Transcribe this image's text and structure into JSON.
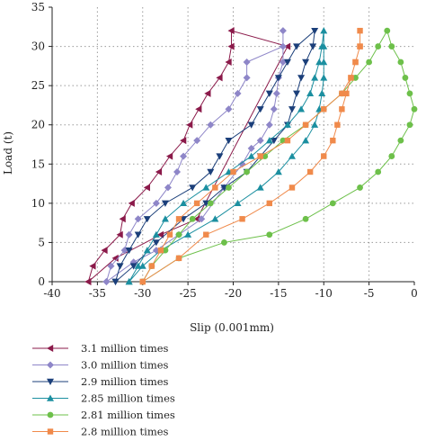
{
  "chart_data": {
    "type": "line",
    "title": "",
    "xlabel": "Slip (0.001mm)",
    "ylabel": "Load (t)",
    "xlim": [
      -40,
      0
    ],
    "ylim": [
      0,
      35
    ],
    "xticks": [
      "-40",
      "-35",
      "-30",
      "-25",
      "-20",
      "-15",
      "-10",
      "-5",
      "0"
    ],
    "yticks": [
      "0",
      "5",
      "10",
      "15",
      "20",
      "25",
      "30",
      "35"
    ],
    "grid": "dotted",
    "legend_position": "bottom",
    "series": [
      {
        "name": "3.1 million times",
        "color": "#8B1A4A",
        "marker": "triangle-left",
        "points": [
          [
            -36,
            0
          ],
          [
            -35.5,
            2
          ],
          [
            -34.2,
            4
          ],
          [
            -32.5,
            6
          ],
          [
            -32.2,
            8
          ],
          [
            -31.2,
            10
          ],
          [
            -29.5,
            12
          ],
          [
            -28.2,
            14
          ],
          [
            -27,
            16
          ],
          [
            -25.5,
            18
          ],
          [
            -24.8,
            20
          ],
          [
            -23.8,
            22
          ],
          [
            -22.8,
            24
          ],
          [
            -21.5,
            26
          ],
          [
            -20.5,
            28
          ],
          [
            -20.2,
            30
          ],
          [
            -20.2,
            32
          ],
          [
            -14,
            30
          ],
          [
            -24,
            8
          ],
          [
            -28,
            6
          ],
          [
            -33,
            3
          ],
          [
            -36,
            0
          ]
        ]
      },
      {
        "name": "3.0 million times",
        "color": "#8E86C8",
        "marker": "diamond",
        "points": [
          [
            -34,
            0
          ],
          [
            -33.5,
            2
          ],
          [
            -32,
            4
          ],
          [
            -31.5,
            6
          ],
          [
            -30.5,
            8
          ],
          [
            -28.5,
            10
          ],
          [
            -27.2,
            12
          ],
          [
            -26.2,
            14
          ],
          [
            -25.5,
            16
          ],
          [
            -24,
            18
          ],
          [
            -22.5,
            20
          ],
          [
            -20.5,
            22
          ],
          [
            -19.5,
            24
          ],
          [
            -18.5,
            26
          ],
          [
            -18.5,
            28
          ],
          [
            -14.5,
            30
          ],
          [
            -14.5,
            32
          ],
          [
            -14.5,
            28
          ],
          [
            -15,
            26
          ],
          [
            -15.2,
            24
          ],
          [
            -15.5,
            22
          ],
          [
            -16,
            20
          ],
          [
            -17,
            18
          ],
          [
            -18,
            17
          ],
          [
            -19,
            15
          ],
          [
            -21,
            12
          ],
          [
            -23.5,
            8
          ],
          [
            -26,
            6
          ],
          [
            -28.5,
            4
          ],
          [
            -31,
            2.5
          ],
          [
            -34,
            0
          ]
        ]
      },
      {
        "name": "2.9 million times",
        "color": "#1B3F7A",
        "marker": "triangle-down",
        "points": [
          [
            -33,
            0
          ],
          [
            -32.5,
            2
          ],
          [
            -31.5,
            4
          ],
          [
            -30.5,
            6
          ],
          [
            -29.5,
            8
          ],
          [
            -27.5,
            10
          ],
          [
            -24.5,
            12
          ],
          [
            -22.5,
            14
          ],
          [
            -21.5,
            16
          ],
          [
            -20.5,
            18
          ],
          [
            -18,
            20
          ],
          [
            -17,
            22
          ],
          [
            -16,
            24
          ],
          [
            -15,
            26
          ],
          [
            -14,
            28
          ],
          [
            -13,
            30
          ],
          [
            -11,
            32
          ],
          [
            -11.2,
            30
          ],
          [
            -12,
            28
          ],
          [
            -12.5,
            26
          ],
          [
            -13,
            24
          ],
          [
            -13.5,
            22
          ],
          [
            -14,
            20
          ],
          [
            -15.5,
            18
          ],
          [
            -17,
            16
          ],
          [
            -18.5,
            14
          ],
          [
            -21,
            12
          ],
          [
            -23,
            10
          ],
          [
            -25.5,
            8
          ],
          [
            -28.5,
            5
          ],
          [
            -31,
            2
          ],
          [
            -33,
            0
          ]
        ]
      },
      {
        "name": "2.85 million times",
        "color": "#1B8FA0",
        "marker": "triangle-up",
        "points": [
          [
            -31.5,
            0
          ],
          [
            -30.5,
            2
          ],
          [
            -29.5,
            4
          ],
          [
            -28.5,
            6
          ],
          [
            -27.5,
            8
          ],
          [
            -25.5,
            10
          ],
          [
            -23,
            12
          ],
          [
            -20.5,
            14
          ],
          [
            -18,
            16
          ],
          [
            -16,
            18
          ],
          [
            -14,
            20
          ],
          [
            -12.5,
            22
          ],
          [
            -11.5,
            24
          ],
          [
            -11,
            26
          ],
          [
            -10.5,
            28
          ],
          [
            -10.2,
            30
          ],
          [
            -10,
            32
          ],
          [
            -10,
            30
          ],
          [
            -10,
            28
          ],
          [
            -10,
            26
          ],
          [
            -10.2,
            24
          ],
          [
            -10.5,
            22
          ],
          [
            -11,
            20
          ],
          [
            -12,
            18
          ],
          [
            -13.5,
            16
          ],
          [
            -15,
            14
          ],
          [
            -17,
            12
          ],
          [
            -19.5,
            10
          ],
          [
            -22,
            8
          ],
          [
            -25,
            6
          ],
          [
            -28,
            4
          ],
          [
            -30,
            2
          ],
          [
            -31.5,
            0
          ]
        ]
      },
      {
        "name": "2.81 million times",
        "color": "#6DC04A",
        "marker": "circle",
        "points": [
          [
            -30,
            0
          ],
          [
            -29,
            2
          ],
          [
            -27.5,
            4
          ],
          [
            -26,
            6
          ],
          [
            -24.5,
            8
          ],
          [
            -22.5,
            10
          ],
          [
            -20.5,
            12
          ],
          [
            -18.5,
            14
          ],
          [
            -16.5,
            16
          ],
          [
            -14.5,
            18
          ],
          [
            -12,
            20
          ],
          [
            -10,
            22
          ],
          [
            -8,
            24
          ],
          [
            -6.5,
            26
          ],
          [
            -5,
            28
          ],
          [
            -4,
            30
          ],
          [
            -3,
            32
          ],
          [
            -2.5,
            30
          ],
          [
            -1.5,
            28
          ],
          [
            -1,
            26
          ],
          [
            -0.5,
            24
          ],
          [
            0,
            22
          ],
          [
            -0.5,
            20
          ],
          [
            -1.5,
            18
          ],
          [
            -2.5,
            16
          ],
          [
            -4,
            14
          ],
          [
            -6,
            12
          ],
          [
            -9,
            10
          ],
          [
            -12,
            8
          ],
          [
            -16,
            6
          ],
          [
            -21,
            5
          ],
          [
            -26,
            3
          ],
          [
            -30,
            0
          ]
        ]
      },
      {
        "name": "2.8 million times",
        "color": "#F08A4B",
        "marker": "square",
        "points": [
          [
            -30,
            0
          ],
          [
            -29,
            2
          ],
          [
            -28,
            4
          ],
          [
            -27,
            6
          ],
          [
            -26,
            8
          ],
          [
            -24,
            10
          ],
          [
            -22,
            12
          ],
          [
            -20,
            14
          ],
          [
            -17,
            16
          ],
          [
            -14,
            18
          ],
          [
            -12,
            20
          ],
          [
            -10,
            22
          ],
          [
            -8,
            24
          ],
          [
            -7,
            26
          ],
          [
            -6.5,
            28
          ],
          [
            -6,
            30
          ],
          [
            -6,
            32
          ],
          [
            -6,
            30
          ],
          [
            -6.5,
            28
          ],
          [
            -7,
            26
          ],
          [
            -7.5,
            24
          ],
          [
            -8,
            22
          ],
          [
            -8.5,
            20
          ],
          [
            -9,
            18
          ],
          [
            -10,
            16
          ],
          [
            -11.5,
            14
          ],
          [
            -13.5,
            12
          ],
          [
            -16,
            10
          ],
          [
            -19,
            8
          ],
          [
            -23,
            6
          ],
          [
            -26,
            3
          ],
          [
            -30,
            0
          ]
        ]
      }
    ]
  }
}
